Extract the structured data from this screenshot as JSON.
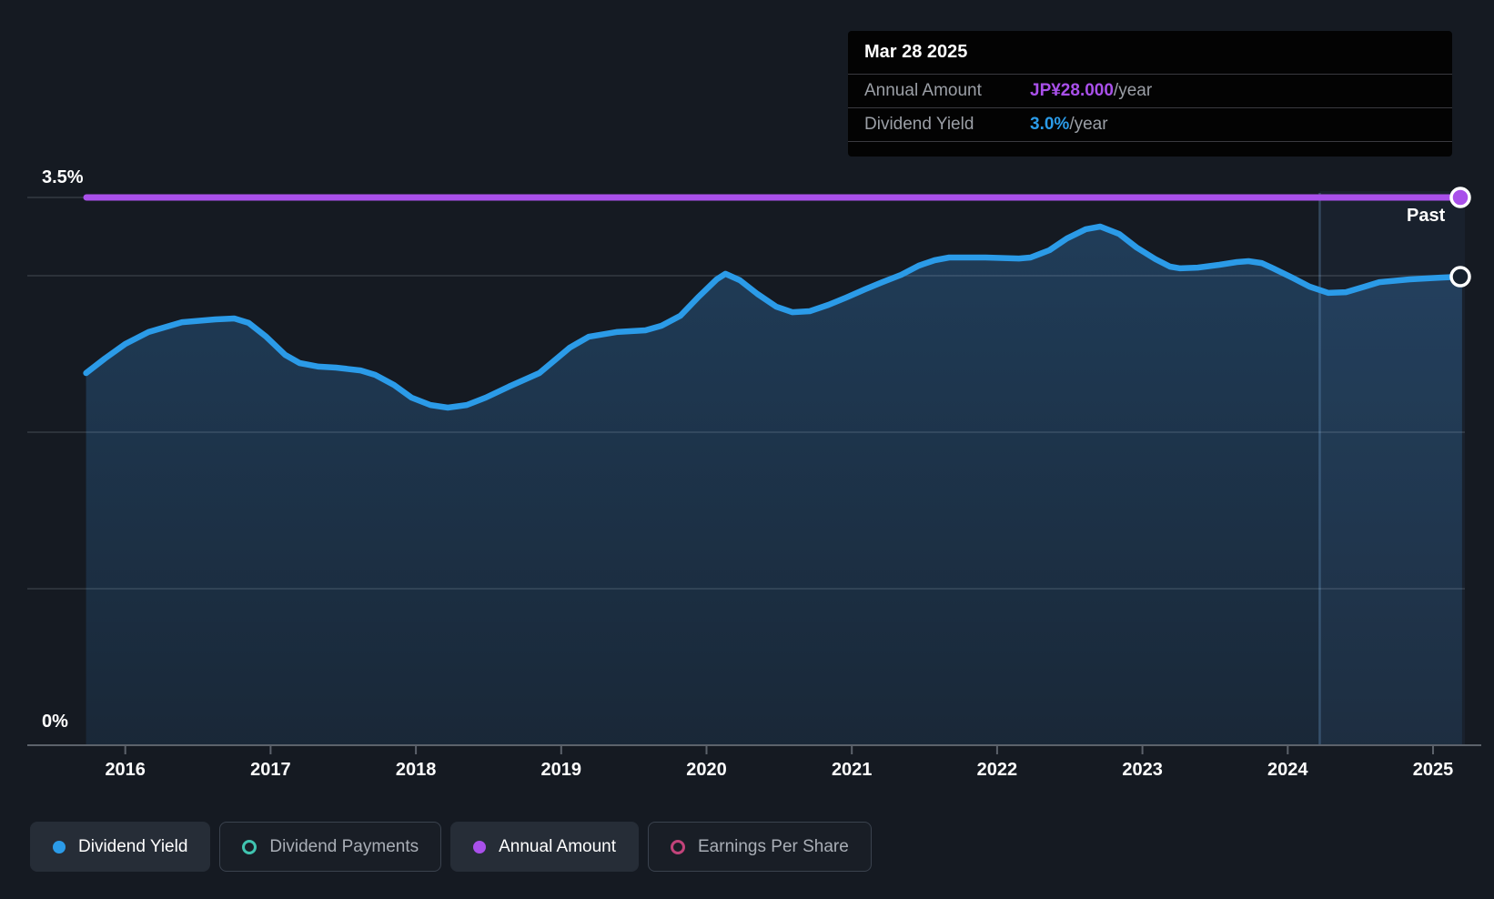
{
  "tooltip": {
    "date": "Mar 28 2025",
    "rows": [
      {
        "label": "Annual Amount",
        "value": "JP¥28.000",
        "suffix": "/year",
        "color": "#a950ea"
      },
      {
        "label": "Dividend Yield",
        "value": "3.0%",
        "suffix": "/year",
        "color": "#2b9be8"
      }
    ]
  },
  "axes": {
    "y_max_label": "3.5%",
    "y_min_label": "0%",
    "past_label": "Past"
  },
  "legend": [
    {
      "label": "Dividend Yield",
      "active": true,
      "marker": "filled",
      "color": "#2b9be8"
    },
    {
      "label": "Dividend Payments",
      "active": false,
      "marker": "hollow",
      "color": "#40c4b0"
    },
    {
      "label": "Annual Amount",
      "active": true,
      "marker": "filled",
      "color": "#a950ea"
    },
    {
      "label": "Earnings Per Share",
      "active": false,
      "marker": "hollow",
      "color": "#c2437a"
    }
  ],
  "colors": {
    "background": "#151a22",
    "yield_line": "#2b9be8",
    "annual_amount_line": "#a950ea",
    "gridline": "rgba(220,230,240,0.16)",
    "axis": "#5c626b",
    "area_top": "rgba(60,150,230,0.28)",
    "area_bottom": "rgba(60,150,230,0.11)",
    "past_overlay": "rgba(106,170,240,0.055)",
    "past_divider": "rgba(120,170,220,0.30)"
  },
  "chart_data": {
    "type": "area",
    "title": "Dividend yield history",
    "ylim": [
      0,
      3.5
    ],
    "y_gridlines_pct": [
      3.5,
      3.0,
      2.0,
      1.0
    ],
    "x_tick_years": [
      2016,
      2017,
      2018,
      2019,
      2020,
      2021,
      2022,
      2023,
      2024,
      2025
    ],
    "past_region_start_year": 2024.22,
    "series": [
      {
        "name": "Dividend Yield",
        "unit": "%",
        "end_value_label": "3.0%/year",
        "points": [
          [
            2015.73,
            2.378
          ],
          [
            2015.86,
            2.471
          ],
          [
            2016.0,
            2.564
          ],
          [
            2016.16,
            2.64
          ],
          [
            2016.39,
            2.703
          ],
          [
            2016.62,
            2.721
          ],
          [
            2016.75,
            2.727
          ],
          [
            2016.85,
            2.698
          ],
          [
            2016.97,
            2.61
          ],
          [
            2017.1,
            2.494
          ],
          [
            2017.2,
            2.442
          ],
          [
            2017.33,
            2.419
          ],
          [
            2017.45,
            2.413
          ],
          [
            2017.62,
            2.395
          ],
          [
            2017.72,
            2.366
          ],
          [
            2017.85,
            2.302
          ],
          [
            2017.97,
            2.221
          ],
          [
            2018.1,
            2.174
          ],
          [
            2018.22,
            2.157
          ],
          [
            2018.35,
            2.174
          ],
          [
            2018.48,
            2.221
          ],
          [
            2018.64,
            2.291
          ],
          [
            2018.85,
            2.378
          ],
          [
            2019.06,
            2.541
          ],
          [
            2019.19,
            2.61
          ],
          [
            2019.38,
            2.64
          ],
          [
            2019.58,
            2.651
          ],
          [
            2019.69,
            2.68
          ],
          [
            2019.82,
            2.744
          ],
          [
            2019.94,
            2.86
          ],
          [
            2020.07,
            2.977
          ],
          [
            2020.13,
            3.012
          ],
          [
            2020.23,
            2.971
          ],
          [
            2020.35,
            2.884
          ],
          [
            2020.48,
            2.802
          ],
          [
            2020.59,
            2.767
          ],
          [
            2020.71,
            2.773
          ],
          [
            2020.84,
            2.814
          ],
          [
            2020.96,
            2.86
          ],
          [
            2021.09,
            2.913
          ],
          [
            2021.21,
            2.959
          ],
          [
            2021.34,
            3.006
          ],
          [
            2021.46,
            3.064
          ],
          [
            2021.57,
            3.099
          ],
          [
            2021.67,
            3.116
          ],
          [
            2021.92,
            3.116
          ],
          [
            2022.15,
            3.11
          ],
          [
            2022.23,
            3.116
          ],
          [
            2022.36,
            3.163
          ],
          [
            2022.48,
            3.238
          ],
          [
            2022.61,
            3.297
          ],
          [
            2022.71,
            3.314
          ],
          [
            2022.84,
            3.267
          ],
          [
            2022.96,
            3.18
          ],
          [
            2023.09,
            3.105
          ],
          [
            2023.19,
            3.058
          ],
          [
            2023.26,
            3.047
          ],
          [
            2023.38,
            3.052
          ],
          [
            2023.53,
            3.07
          ],
          [
            2023.65,
            3.087
          ],
          [
            2023.73,
            3.093
          ],
          [
            2023.82,
            3.081
          ],
          [
            2023.9,
            3.047
          ],
          [
            2024.03,
            2.988
          ],
          [
            2024.15,
            2.93
          ],
          [
            2024.28,
            2.89
          ],
          [
            2024.4,
            2.895
          ],
          [
            2024.53,
            2.93
          ],
          [
            2024.63,
            2.959
          ],
          [
            2024.84,
            2.977
          ],
          [
            2025.05,
            2.988
          ],
          [
            2025.2,
            2.994
          ]
        ]
      },
      {
        "name": "Annual Amount",
        "unit": "JP¥/year",
        "constant_value": 28.0,
        "value_label": "JP¥28.000/year",
        "display_pct": 3.5
      }
    ]
  }
}
